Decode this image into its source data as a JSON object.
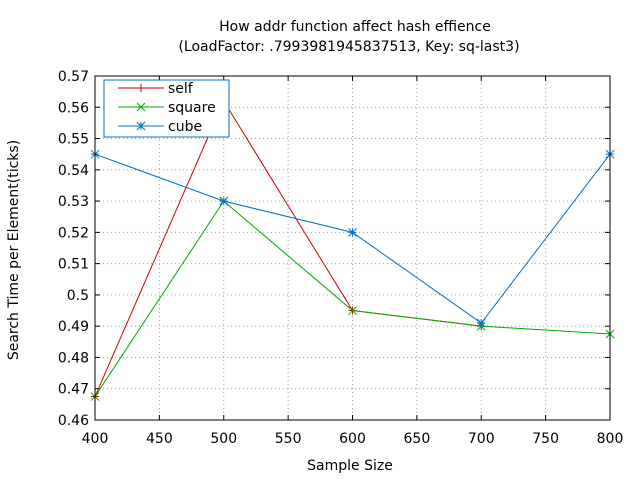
{
  "chart_data": {
    "type": "line",
    "title": "How addr function affect hash effience",
    "subtitle": "(LoadFactor: .7993981945837513, Key: sq-last3)",
    "xlabel": "Sample Size",
    "ylabel": "Search Time per Element(ticks)",
    "xlim": [
      400,
      800
    ],
    "ylim": [
      0.46,
      0.57
    ],
    "xticks": [
      400,
      450,
      500,
      550,
      600,
      650,
      700,
      750,
      800
    ],
    "yticks": [
      0.46,
      0.47,
      0.48,
      0.49,
      0.5,
      0.51,
      0.52,
      0.53,
      0.54,
      0.55,
      0.56,
      0.57
    ],
    "ytick_labels": [
      "0.46",
      "0.47",
      "0.48",
      "0.49",
      "0.5",
      "0.51",
      "0.52",
      "0.53",
      "0.54",
      "0.55",
      "0.56",
      "0.57"
    ],
    "grid": true,
    "legend_position": "top-left",
    "series": [
      {
        "name": "self",
        "color": "#cc0000",
        "marker": "plus",
        "x": [
          400,
          500,
          600,
          700
        ],
        "y": [
          0.4675,
          0.562,
          0.495,
          0.49
        ]
      },
      {
        "name": "square",
        "color": "#00aa00",
        "marker": "cross",
        "x": [
          400,
          500,
          600,
          700,
          800
        ],
        "y": [
          0.4675,
          0.53,
          0.495,
          0.49,
          0.4875
        ]
      },
      {
        "name": "cube",
        "color": "#0070c0",
        "marker": "star",
        "x": [
          400,
          500,
          600,
          700,
          800
        ],
        "y": [
          0.545,
          0.53,
          0.52,
          0.491,
          0.545
        ]
      }
    ]
  }
}
